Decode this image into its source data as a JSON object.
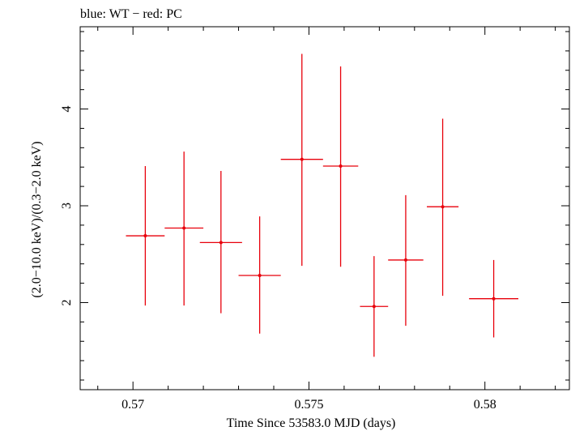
{
  "chart_data": {
    "type": "scatter",
    "title": "blue: WT − red: PC",
    "xlabel": "Time Since 53583.0 MJD (days)",
    "ylabel": "(2.0−10.0 keV)/(0.3−2.0 keV)",
    "xlim": [
      0.5685,
      0.5824
    ],
    "ylim": [
      1.1,
      4.85
    ],
    "x_ticks": [
      {
        "value": 0.57,
        "label": "0.57"
      },
      {
        "value": 0.575,
        "label": "0.575"
      },
      {
        "value": 0.58,
        "label": "0.58"
      }
    ],
    "y_ticks": [
      {
        "value": 2,
        "label": "2"
      },
      {
        "value": 3,
        "label": "3"
      },
      {
        "value": 4,
        "label": "4"
      }
    ],
    "grid": false,
    "series": [
      {
        "color": "#e8000b",
        "points": [
          {
            "x": 0.57035,
            "xerr": 0.00055,
            "y": 2.69,
            "ylo": 1.97,
            "yhi": 3.41
          },
          {
            "x": 0.57145,
            "xerr": 0.00055,
            "y": 2.77,
            "ylo": 1.97,
            "yhi": 3.56
          },
          {
            "x": 0.5725,
            "xerr": 0.0006,
            "y": 2.62,
            "ylo": 1.89,
            "yhi": 3.36
          },
          {
            "x": 0.5736,
            "xerr": 0.0006,
            "y": 2.28,
            "ylo": 1.68,
            "yhi": 2.89
          },
          {
            "x": 0.5748,
            "xerr": 0.0006,
            "y": 3.48,
            "ylo": 2.38,
            "yhi": 4.57
          },
          {
            "x": 0.5759,
            "xerr": 0.0005,
            "y": 3.41,
            "ylo": 2.37,
            "yhi": 4.44
          },
          {
            "x": 0.57685,
            "xerr": 0.0004,
            "y": 1.96,
            "ylo": 1.44,
            "yhi": 2.48
          },
          {
            "x": 0.57775,
            "xerr": 0.0005,
            "y": 2.44,
            "ylo": 1.76,
            "yhi": 3.11
          },
          {
            "x": 0.5788,
            "xerr": 0.00045,
            "y": 2.99,
            "ylo": 2.07,
            "yhi": 3.9
          },
          {
            "x": 0.58025,
            "xerr": 0.0007,
            "y": 2.04,
            "ylo": 1.64,
            "yhi": 2.44
          }
        ]
      }
    ]
  }
}
